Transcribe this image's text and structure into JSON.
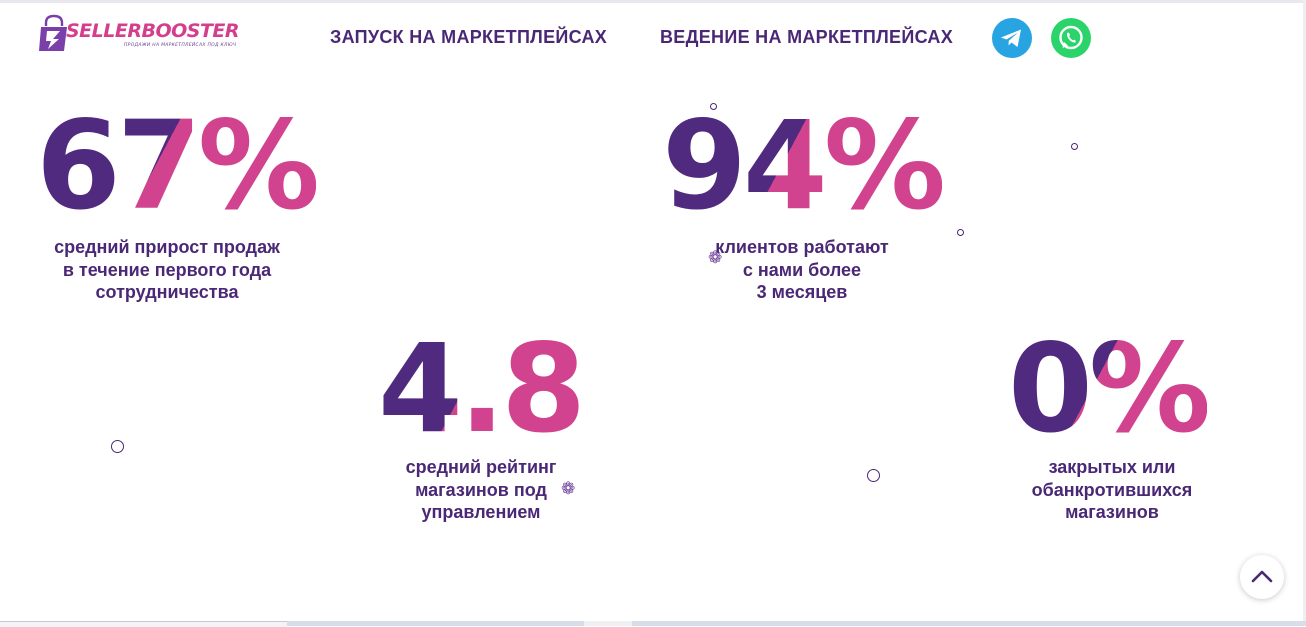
{
  "header": {
    "logo": {
      "text": "SELLERBOOSTER",
      "tagline": "ПРОДАЖИ НА МАРКЕТПЛЕЙСАХ ПОД КЛЮЧ"
    },
    "nav": [
      {
        "label": "ЗАПУСК НА МАРКЕТПЛЕЙСАХ"
      },
      {
        "label": "ВЕДЕНИЕ НА МАРКЕТПЛЕЙСАХ"
      }
    ],
    "social": [
      {
        "icon": "telegram-icon",
        "color": "#27a4e1"
      },
      {
        "icon": "whatsapp-icon",
        "color": "#2bd46a"
      }
    ]
  },
  "stats": [
    {
      "value": "67%",
      "label_lines": [
        "средний прирост продаж",
        "в течение первого года",
        "сотрудничества"
      ]
    },
    {
      "value": "94%",
      "label_lines": [
        "клиентов работают",
        "с нами более",
        "3 месяцев"
      ]
    },
    {
      "value": "4.8",
      "label_lines": [
        "средний рейтинг",
        "магазинов под",
        "управлением"
      ]
    },
    {
      "value": "0%",
      "label_lines": [
        "закрытых или",
        "обанкротившихся",
        "магазинов"
      ]
    }
  ],
  "colors": {
    "primary": "#4a2875",
    "accent": "#d1438e"
  },
  "controls": {
    "scroll_top_icon": "chevron-up-icon"
  }
}
